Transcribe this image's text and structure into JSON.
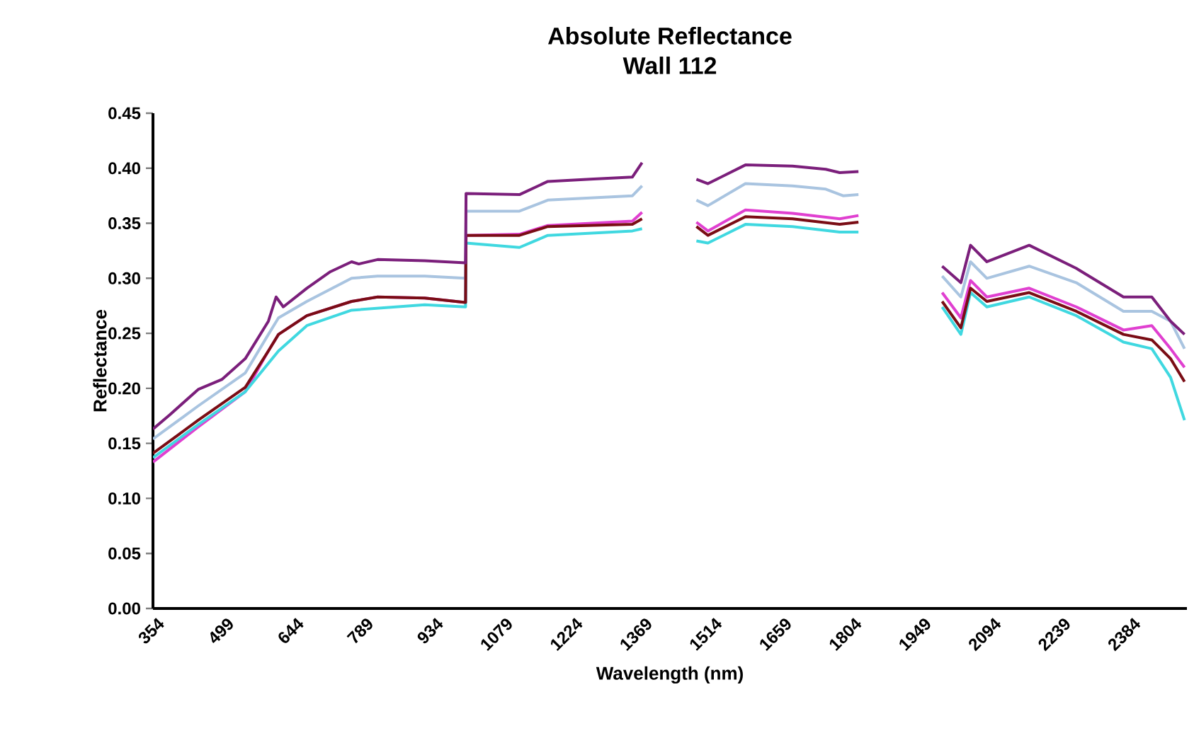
{
  "chart_data": {
    "type": "line",
    "title": "Absolute Reflectance",
    "subtitle": "Wall 112",
    "xlabel": "Wavelength (nm)",
    "ylabel": "Reflectance",
    "xlim": [
      350,
      2500
    ],
    "ylim": [
      0,
      0.45
    ],
    "xticks": [
      354,
      499,
      644,
      789,
      934,
      1079,
      1224,
      1369,
      1514,
      1659,
      1804,
      1949,
      2094,
      2239,
      2384
    ],
    "yticks": [
      {
        "value": 0,
        "label": "0.00"
      },
      {
        "value": 0.05,
        "label": "0.05"
      },
      {
        "value": 0.1,
        "label": "0.10"
      },
      {
        "value": 0.15,
        "label": "0.15"
      },
      {
        "value": 0.2,
        "label": "0.20"
      },
      {
        "value": 0.25,
        "label": "0.25"
      },
      {
        "value": 0.3,
        "label": "0.30"
      },
      {
        "value": 0.35,
        "label": "0.35"
      },
      {
        "value": 0.4,
        "label": "0.40"
      },
      {
        "value": 0.45,
        "label": "0.45"
      }
    ],
    "grid": false,
    "series": [
      {
        "color": "#a9c4e0",
        "x": [
          350,
          444,
          542,
          590,
          611,
          670,
          763,
          817,
          915,
          1000,
          1001,
          1112,
          1171,
          1347,
          1367,
          1420,
          1480,
          1504,
          1582,
          1680,
          1749,
          1785,
          1817,
          1900,
          1991,
          2030,
          2050,
          2084,
          2172,
          2270,
          2368,
          2427,
          2466,
          2495
        ],
        "values": [
          0.154,
          0.184,
          0.214,
          0.249,
          0.264,
          0.279,
          0.3,
          0.302,
          0.302,
          0.3,
          0.361,
          0.361,
          0.371,
          0.375,
          0.384,
          null,
          0.371,
          0.366,
          0.386,
          0.384,
          0.381,
          0.375,
          0.376,
          null,
          0.302,
          0.283,
          0.315,
          0.3,
          0.311,
          0.296,
          0.27,
          0.27,
          0.261,
          0.236
        ]
      },
      {
        "color": "#e040d0",
        "x": [
          350,
          444,
          542,
          590,
          611,
          670,
          763,
          817,
          915,
          1000,
          1001,
          1112,
          1171,
          1347,
          1367,
          1420,
          1480,
          1504,
          1582,
          1680,
          1778,
          1817,
          1900,
          1991,
          2030,
          2050,
          2084,
          2172,
          2270,
          2368,
          2427,
          2466,
          2495
        ],
        "values": [
          0.133,
          0.165,
          0.197,
          0.234,
          0.249,
          0.266,
          0.279,
          0.283,
          0.282,
          0.278,
          0.339,
          0.34,
          0.348,
          0.352,
          0.36,
          null,
          0.351,
          0.343,
          0.362,
          0.359,
          0.354,
          0.357,
          null,
          0.287,
          0.264,
          0.298,
          0.283,
          0.291,
          0.274,
          0.253,
          0.257,
          0.236,
          0.219
        ]
      },
      {
        "color": "#40d8e0",
        "x": [
          350,
          444,
          542,
          611,
          670,
          763,
          915,
          1000,
          1001,
          1112,
          1171,
          1347,
          1367,
          1420,
          1480,
          1504,
          1582,
          1680,
          1778,
          1817,
          1900,
          1991,
          2030,
          2050,
          2084,
          2172,
          2270,
          2368,
          2427,
          2466,
          2495
        ],
        "values": [
          0.137,
          0.167,
          0.197,
          0.234,
          0.257,
          0.271,
          0.276,
          0.274,
          0.332,
          0.328,
          0.339,
          0.343,
          0.345,
          null,
          0.334,
          0.332,
          0.349,
          0.347,
          0.342,
          0.342,
          null,
          0.274,
          0.249,
          0.287,
          0.274,
          0.283,
          0.266,
          0.242,
          0.236,
          0.21,
          0.171
        ]
      },
      {
        "color": "#7a0d15",
        "x": [
          350,
          444,
          542,
          590,
          611,
          670,
          763,
          817,
          915,
          1000,
          1001,
          1112,
          1171,
          1347,
          1367,
          1420,
          1480,
          1504,
          1582,
          1680,
          1778,
          1817,
          1900,
          1991,
          2030,
          2050,
          2084,
          2172,
          2270,
          2368,
          2427,
          2466,
          2495
        ],
        "values": [
          0.141,
          0.171,
          0.201,
          0.234,
          0.249,
          0.266,
          0.279,
          0.283,
          0.282,
          0.278,
          0.339,
          0.339,
          0.347,
          0.349,
          0.354,
          null,
          0.347,
          0.339,
          0.356,
          0.354,
          0.349,
          0.351,
          null,
          0.279,
          0.255,
          0.291,
          0.279,
          0.287,
          0.27,
          0.249,
          0.244,
          0.227,
          0.206
        ]
      },
      {
        "color": "#7b1f7b",
        "x": [
          350,
          385,
          444,
          493,
          542,
          590,
          606,
          621,
          670,
          719,
          763,
          778,
          817,
          915,
          1000,
          1001,
          1112,
          1171,
          1259,
          1347,
          1367,
          1420,
          1480,
          1504,
          1582,
          1680,
          1749,
          1778,
          1817,
          1900,
          1991,
          2030,
          2050,
          2084,
          2172,
          2270,
          2368,
          2427,
          2466,
          2495
        ],
        "values": [
          0.163,
          0.176,
          0.199,
          0.208,
          0.227,
          0.261,
          0.283,
          0.274,
          0.291,
          0.306,
          0.315,
          0.313,
          0.317,
          0.316,
          0.314,
          0.377,
          0.376,
          0.388,
          0.39,
          0.392,
          0.405,
          null,
          0.39,
          0.386,
          0.403,
          0.402,
          0.399,
          0.396,
          0.397,
          null,
          0.311,
          0.296,
          0.33,
          0.315,
          0.33,
          0.309,
          0.283,
          0.283,
          0.261,
          0.249
        ]
      }
    ]
  }
}
